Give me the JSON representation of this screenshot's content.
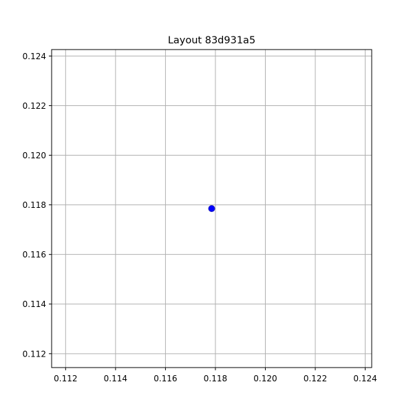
{
  "chart_data": {
    "type": "scatter",
    "title": "Layout 83d931a5",
    "xlabel": "",
    "ylabel": "",
    "xlim": [
      0.11144,
      0.12426
    ],
    "ylim": [
      0.11144,
      0.12426
    ],
    "x_ticks": [
      0.112,
      0.114,
      0.116,
      0.118,
      0.12,
      0.122,
      0.124
    ],
    "x_tick_labels": [
      "0.112",
      "0.114",
      "0.116",
      "0.118",
      "0.120",
      "0.122",
      "0.124"
    ],
    "y_ticks": [
      0.112,
      0.114,
      0.116,
      0.118,
      0.12,
      0.122,
      0.124
    ],
    "y_tick_labels": [
      "0.112",
      "0.114",
      "0.116",
      "0.118",
      "0.120",
      "0.122",
      "0.124"
    ],
    "grid": true,
    "series": [
      {
        "color": "#0000ff",
        "points": [
          {
            "x": 0.11785,
            "y": 0.11785
          }
        ]
      }
    ]
  }
}
